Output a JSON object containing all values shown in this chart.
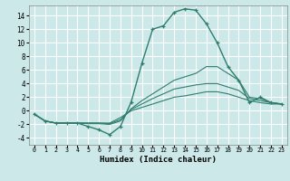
{
  "xlabel": "Humidex (Indice chaleur)",
  "ylabel": "",
  "bg_color": "#cce8e8",
  "grid_color": "#ffffff",
  "line_color": "#2e7d6e",
  "x_ticks": [
    0,
    1,
    2,
    3,
    4,
    5,
    6,
    7,
    8,
    9,
    10,
    11,
    12,
    13,
    14,
    15,
    16,
    17,
    18,
    19,
    20,
    21,
    22,
    23
  ],
  "yticks": [
    -4,
    -2,
    0,
    2,
    4,
    6,
    8,
    10,
    12,
    14
  ],
  "ylim": [
    -5,
    15.5
  ],
  "xlim": [
    -0.5,
    23.5
  ],
  "curves": [
    {
      "x": [
        0,
        1,
        2,
        3,
        4,
        5,
        6,
        7,
        8,
        9,
        10,
        11,
        12,
        13,
        14,
        15,
        16,
        17,
        18,
        19,
        20,
        21,
        22,
        23
      ],
      "y": [
        -0.5,
        -1.5,
        -1.8,
        -1.8,
        -1.8,
        -2.3,
        -2.8,
        -3.5,
        -2.3,
        1.3,
        7.0,
        12.0,
        12.5,
        14.5,
        15.0,
        14.8,
        12.8,
        10.0,
        6.5,
        4.5,
        1.2,
        2.0,
        1.2,
        1.0
      ],
      "marker": "+"
    },
    {
      "x": [
        0,
        1,
        2,
        3,
        4,
        5,
        6,
        7,
        8,
        9,
        10,
        11,
        12,
        13,
        14,
        15,
        16,
        17,
        18,
        19,
        20,
        21,
        22,
        23
      ],
      "y": [
        -0.5,
        -1.5,
        -1.8,
        -1.8,
        -1.8,
        -1.9,
        -1.9,
        -2.0,
        -1.5,
        0.3,
        1.5,
        2.5,
        3.5,
        4.5,
        5.0,
        5.5,
        6.5,
        6.5,
        5.5,
        4.5,
        2.0,
        1.8,
        1.2,
        1.0
      ],
      "marker": null
    },
    {
      "x": [
        0,
        1,
        2,
        3,
        4,
        5,
        6,
        7,
        8,
        9,
        10,
        11,
        12,
        13,
        14,
        15,
        16,
        17,
        18,
        19,
        20,
        21,
        22,
        23
      ],
      "y": [
        -0.5,
        -1.5,
        -1.8,
        -1.8,
        -1.8,
        -1.8,
        -1.8,
        -1.9,
        -1.3,
        0.2,
        1.0,
        1.8,
        2.5,
        3.2,
        3.5,
        3.8,
        4.0,
        4.0,
        3.5,
        3.0,
        1.8,
        1.5,
        1.2,
        1.0
      ],
      "marker": null
    },
    {
      "x": [
        0,
        1,
        2,
        3,
        4,
        5,
        6,
        7,
        8,
        9,
        10,
        11,
        12,
        13,
        14,
        15,
        16,
        17,
        18,
        19,
        20,
        21,
        22,
        23
      ],
      "y": [
        -0.5,
        -1.5,
        -1.8,
        -1.8,
        -1.8,
        -1.8,
        -1.8,
        -1.8,
        -1.0,
        0.0,
        0.5,
        1.0,
        1.5,
        2.0,
        2.2,
        2.5,
        2.8,
        2.8,
        2.5,
        2.0,
        1.5,
        1.2,
        1.0,
        1.0
      ],
      "marker": null
    }
  ]
}
